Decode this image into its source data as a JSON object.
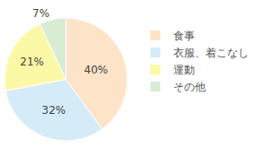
{
  "chart_data": {
    "type": "pie",
    "categories": [
      "食事",
      "衣服、着こなし",
      "運動",
      "その他"
    ],
    "values": [
      40,
      32,
      21,
      7
    ],
    "value_labels": [
      "40%",
      "32%",
      "21%",
      "7%"
    ],
    "colors": [
      "#fde3c8",
      "#d5ebf8",
      "#fcf9a6",
      "#d8ecd4"
    ],
    "data_labels": true,
    "legend": "right"
  }
}
